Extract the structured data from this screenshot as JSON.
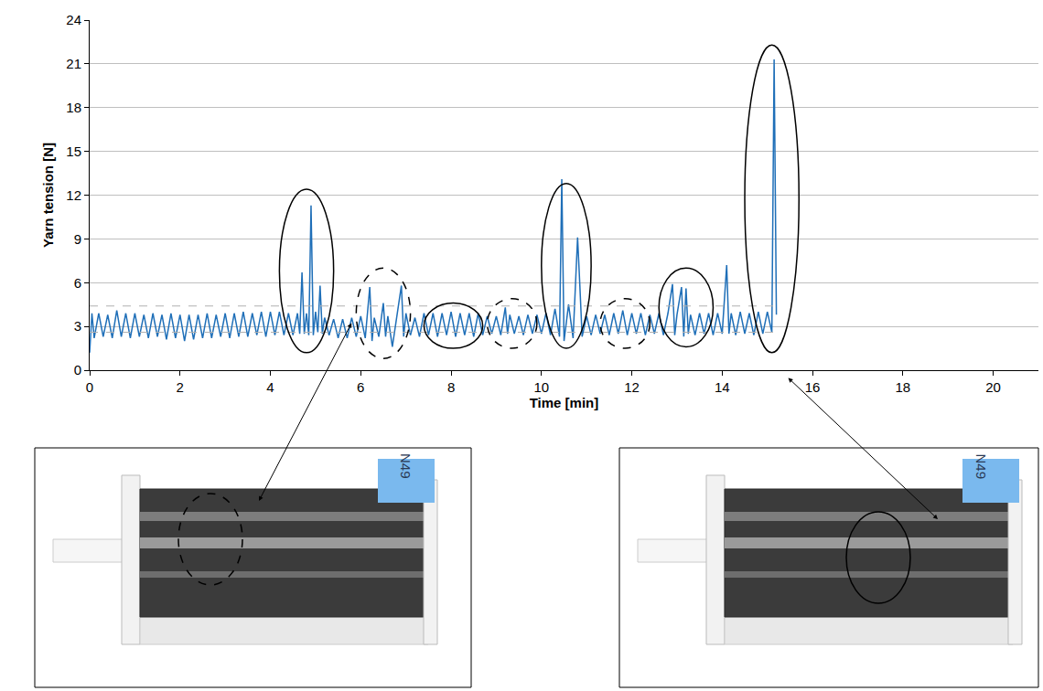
{
  "chart_data": {
    "type": "line",
    "xlabel": "Time [min]",
    "ylabel": "Yarn tension [N]",
    "color": "#1f6fb8",
    "grid": true,
    "xlim": [
      0,
      21
    ],
    "ylim": [
      0,
      24
    ],
    "xticks": [
      0,
      2,
      4,
      6,
      8,
      10,
      12,
      14,
      16,
      18,
      20
    ],
    "yticks": [
      0,
      3,
      6,
      9,
      12,
      15,
      18,
      21,
      24
    ],
    "x": [
      0,
      0.05,
      0.1,
      0.2,
      0.3,
      0.4,
      0.5,
      0.6,
      0.7,
      0.8,
      0.9,
      1.0,
      1.1,
      1.2,
      1.3,
      1.4,
      1.5,
      1.6,
      1.7,
      1.8,
      1.9,
      2.0,
      2.1,
      2.2,
      2.3,
      2.4,
      2.5,
      2.6,
      2.7,
      2.8,
      2.9,
      3.0,
      3.1,
      3.2,
      3.3,
      3.4,
      3.5,
      3.6,
      3.7,
      3.8,
      3.9,
      4.0,
      4.1,
      4.2,
      4.3,
      4.4,
      4.5,
      4.6,
      4.65,
      4.7,
      4.75,
      4.8,
      4.85,
      4.9,
      4.95,
      5.0,
      5.05,
      5.1,
      5.15,
      5.2,
      5.3,
      5.4,
      5.5,
      5.6,
      5.7,
      5.8,
      5.9,
      6.0,
      6.1,
      6.2,
      6.25,
      6.3,
      6.4,
      6.5,
      6.55,
      6.6,
      6.7,
      6.8,
      6.9,
      6.95,
      7.0,
      7.1,
      7.2,
      7.3,
      7.4,
      7.5,
      7.6,
      7.7,
      7.8,
      7.9,
      8.0,
      8.1,
      8.2,
      8.3,
      8.4,
      8.5,
      8.6,
      8.7,
      8.8,
      8.9,
      9.0,
      9.1,
      9.2,
      9.25,
      9.3,
      9.4,
      9.5,
      9.6,
      9.7,
      9.8,
      9.9,
      10.0,
      10.1,
      10.2,
      10.3,
      10.4,
      10.45,
      10.5,
      10.6,
      10.7,
      10.8,
      10.85,
      10.9,
      11.0,
      11.1,
      11.2,
      11.3,
      11.4,
      11.5,
      11.6,
      11.7,
      11.8,
      11.9,
      12.0,
      12.1,
      12.2,
      12.3,
      12.4,
      12.5,
      12.6,
      12.7,
      12.8,
      12.9,
      12.95,
      13.0,
      13.1,
      13.15,
      13.2,
      13.25,
      13.3,
      13.4,
      13.5,
      13.6,
      13.7,
      13.8,
      13.9,
      14.0,
      14.1,
      14.15,
      14.2,
      14.3,
      14.4,
      14.5,
      14.6,
      14.7,
      14.8,
      14.9,
      15.0,
      15.1,
      15.15,
      15.2
    ],
    "values": [
      1.2,
      3.9,
      2.2,
      3.9,
      2.3,
      3.8,
      2.2,
      4.1,
      2.3,
      3.9,
      2.2,
      3.9,
      2.3,
      3.8,
      2.2,
      3.9,
      2.3,
      3.8,
      2.1,
      3.9,
      2.2,
      3.8,
      2.0,
      3.8,
      2.1,
      3.8,
      2.2,
      3.9,
      2.2,
      3.8,
      2.3,
      3.9,
      2.2,
      3.9,
      2.3,
      4.0,
      2.3,
      3.9,
      2.4,
      4.0,
      2.3,
      4.0,
      2.4,
      4.0,
      2.4,
      3.9,
      2.4,
      3.9,
      2.5,
      6.7,
      2.5,
      3.9,
      2.4,
      11.3,
      2.4,
      4.0,
      2.6,
      5.8,
      2.5,
      3.6,
      2.4,
      3.5,
      2.2,
      3.5,
      2.2,
      3.6,
      2.3,
      3.7,
      2.2,
      5.7,
      2.0,
      3.6,
      2.3,
      4.6,
      2.3,
      3.7,
      1.6,
      3.6,
      5.8,
      2.3,
      3.9,
      2.4,
      3.6,
      2.3,
      3.9,
      2.4,
      3.9,
      2.3,
      3.9,
      2.4,
      4.0,
      2.3,
      3.9,
      2.4,
      3.9,
      2.3,
      3.9,
      2.4,
      3.7,
      2.5,
      3.7,
      2.4,
      4.3,
      2.5,
      3.8,
      2.5,
      3.7,
      2.4,
      3.8,
      2.5,
      3.8,
      2.5,
      3.9,
      2.4,
      4.2,
      2.3,
      13.1,
      2.0,
      4.5,
      2.2,
      9.1,
      5.8,
      2.3,
      3.7,
      2.4,
      3.8,
      2.5,
      3.8,
      2.4,
      3.9,
      2.5,
      4.1,
      2.4,
      3.9,
      2.5,
      3.9,
      2.4,
      3.8,
      2.5,
      3.9,
      2.4,
      3.9,
      5.9,
      2.4,
      3.8,
      5.7,
      2.3,
      5.6,
      2.5,
      3.8,
      2.4,
      3.9,
      2.5,
      3.9,
      2.4,
      3.9,
      2.5,
      7.2,
      2.5,
      3.9,
      2.4,
      4.0,
      2.5,
      3.9,
      2.4,
      4.0,
      2.5,
      4.0,
      2.6,
      21.3,
      3.8
    ],
    "reference_lines": [
      2.6,
      4.4
    ],
    "highlights": [
      {
        "x0": 4.2,
        "x1": 5.4,
        "y0": 1.2,
        "y1": 12.4,
        "line_style": "solid"
      },
      {
        "x0": 5.9,
        "x1": 7.1,
        "y0": 0.8,
        "y1": 7.0,
        "line_style": "dashed"
      },
      {
        "x0": 7.4,
        "x1": 8.7,
        "y0": 1.5,
        "y1": 4.6,
        "line_style": "solid"
      },
      {
        "x0": 8.8,
        "x1": 9.9,
        "y0": 1.5,
        "y1": 4.9,
        "line_style": "dashed"
      },
      {
        "x0": 10.0,
        "x1": 11.1,
        "y0": 1.5,
        "y1": 12.8,
        "line_style": "solid"
      },
      {
        "x0": 11.3,
        "x1": 12.4,
        "y0": 1.5,
        "y1": 4.9,
        "line_style": "dashed"
      },
      {
        "x0": 12.6,
        "x1": 13.8,
        "y0": 1.6,
        "y1": 7.0,
        "line_style": "solid"
      },
      {
        "x0": 14.5,
        "x1": 15.7,
        "y0": 1.2,
        "y1": 22.3,
        "line_style": "solid"
      }
    ],
    "photo_label": "N49"
  }
}
